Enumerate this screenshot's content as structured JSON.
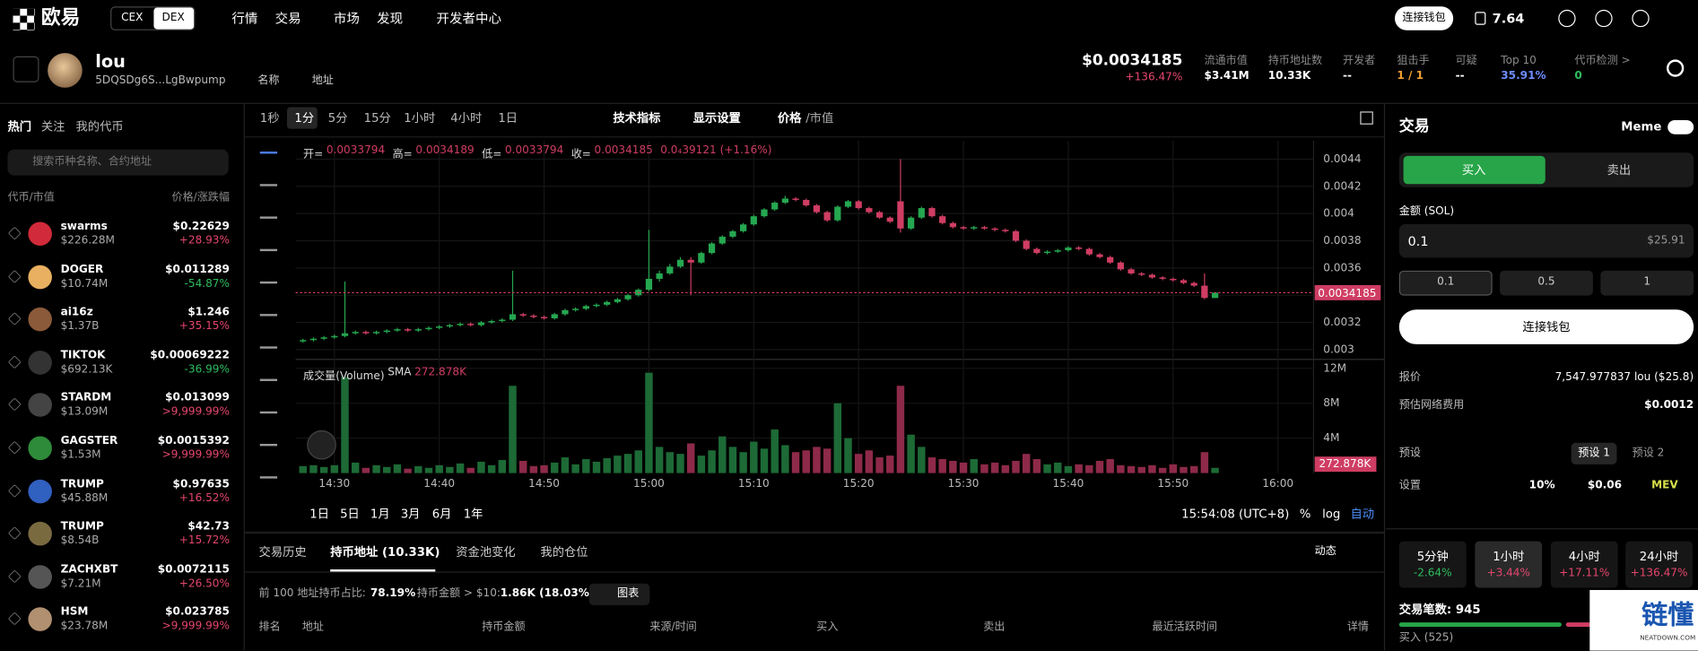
{
  "header": {
    "logo": "欧易",
    "cex": "CEX",
    "dex": "DEX",
    "nav": [
      "行情",
      "交易",
      "市场",
      "发现",
      "开发者中心"
    ],
    "connect": "连接钱包",
    "balance": "7.64"
  },
  "token": {
    "name": "lou",
    "address": "5DQSDg6S...LgBwpump",
    "links": [
      "名称",
      "地址"
    ],
    "price": "$0.0034185",
    "change": "+136.47%",
    "stats": [
      {
        "label": "流通市值",
        "value": "$3.41M"
      },
      {
        "label": "持币地址数",
        "value": "10.33K"
      },
      {
        "label": "开发者",
        "value": "--"
      },
      {
        "label": "狙击手",
        "value": "1 / 1"
      },
      {
        "label": "可疑",
        "value": "--"
      },
      {
        "label": "Top 10",
        "value": "35.91%"
      },
      {
        "label": "代币检测 >",
        "value": "0"
      }
    ]
  },
  "sidebar": {
    "tabs": [
      "热门",
      "关注",
      "我的代币"
    ],
    "search": "搜索币种名称、合约地址",
    "col_left": "代币/市值",
    "col_right": "价格/涨跌幅",
    "tokens": [
      {
        "name": "swarms",
        "mcap": "$226.28M",
        "price": "$0.22629",
        "change": "+28.93%"
      },
      {
        "name": "DOGER",
        "mcap": "$10.74M",
        "price": "$0.011289",
        "change": "-54.87%"
      },
      {
        "name": "ai16z",
        "mcap": "$1.37B",
        "price": "$1.246",
        "change": "+35.15%"
      },
      {
        "name": "TIKTOK",
        "mcap": "$692.13K",
        "price": "$0.00069222",
        "change": "-36.99%"
      },
      {
        "name": "STARDM",
        "mcap": "$13.09M",
        "price": "$0.013099",
        "change": ">9,999.99%"
      },
      {
        "name": "GAGSTER",
        "mcap": "$1.53M",
        "price": "$0.0015392",
        "change": ">9,999.99%"
      },
      {
        "name": "TRUMP",
        "mcap": "$45.88M",
        "price": "$0.97635",
        "change": "+16.52%"
      },
      {
        "name": "TRUMP",
        "mcap": "$8.54B",
        "price": "$42.73",
        "change": "+15.72%"
      },
      {
        "name": "ZACHXBT",
        "mcap": "$7.21M",
        "price": "$0.0072115",
        "change": "+26.50%"
      },
      {
        "name": "HSM",
        "mcap": "$23.78M",
        "price": "$0.023785",
        "change": ">9,999.99%"
      }
    ]
  },
  "toolbar": {
    "intervals": [
      "1秒",
      "1分",
      "5分",
      "15分",
      "1小时",
      "4小时",
      "1日"
    ],
    "indicators": "技术指标",
    "display": "显示设置",
    "price": "价格",
    "mcap": "/市值"
  },
  "chart_data": {
    "type": "candlestick",
    "ohlc_labels": [
      "开=",
      "高=",
      "低=",
      "收="
    ],
    "change": "0.0₄39121 (+1.16%)",
    "volume_title": "成交量(Volume)",
    "sma": "SMA",
    "volume_sma": {
      "value": 272878,
      "label": "272.878K"
    },
    "up_color": "#25a750",
    "down_color": "#cf3d63",
    "volume_up_color": "#1d6a36",
    "volume_down_color": "#8e2a49",
    "xlim": [
      -0.7,
      96.4
    ],
    "xticks": [
      {
        "value": 3,
        "label": "14:30"
      },
      {
        "value": 13,
        "label": "14:40"
      },
      {
        "value": 23,
        "label": "14:50"
      },
      {
        "value": 33,
        "label": "15:00"
      },
      {
        "value": 43,
        "label": "15:10"
      },
      {
        "value": 53,
        "label": "15:20"
      },
      {
        "value": 63,
        "label": "15:30"
      },
      {
        "value": 73,
        "label": "15:40"
      },
      {
        "value": 83,
        "label": "15:50"
      },
      {
        "value": 93,
        "label": "16:00"
      }
    ],
    "ylim": [
      0.002944,
      0.004535
    ],
    "yticks": [
      0.003,
      0.0032,
      0.0034,
      0.0036,
      0.0038,
      0.004,
      0.0042,
      0.0044
    ],
    "y2lim": [
      0,
      12900000
    ],
    "y2ticks": [
      {
        "value": 4000000,
        "label": "4M"
      },
      {
        "value": 8000000,
        "label": "8M"
      },
      {
        "value": 12000000,
        "label": "12M"
      }
    ],
    "open": [
      0.00306,
      0.00307,
      0.00308,
      0.00309,
      0.0031,
      0.00312,
      0.00313,
      0.00312,
      0.00313,
      0.00314,
      0.00315,
      0.00314,
      0.00315,
      0.00316,
      0.00317,
      0.00318,
      0.00319,
      0.00318,
      0.0032,
      0.00321,
      0.00322,
      0.00326,
      0.00325,
      0.00324,
      0.00323,
      0.00326,
      0.00329,
      0.0033,
      0.00332,
      0.00333,
      0.00335,
      0.00337,
      0.0034,
      0.00344,
      0.00352,
      0.00356,
      0.00361,
      0.00366,
      0.00364,
      0.00371,
      0.00378,
      0.00383,
      0.00387,
      0.00392,
      0.00398,
      0.00403,
      0.00408,
      0.00411,
      0.0041,
      0.00406,
      0.00401,
      0.00395,
      0.00405,
      0.00409,
      0.00404,
      0.00401,
      0.00397,
      0.00409,
      0.00389,
      0.00397,
      0.00404,
      0.00398,
      0.00393,
      0.0039,
      0.00389,
      0.0039,
      0.00389,
      0.00388,
      0.00387,
      0.0038,
      0.00374,
      0.00371,
      0.00372,
      0.00373,
      0.00375,
      0.00374,
      0.0037,
      0.00368,
      0.00364,
      0.00359,
      0.00356,
      0.00355,
      0.00353,
      0.00352,
      0.00351,
      0.00349,
      0.00347,
      0.0033794
    ],
    "high": [
      0.00308,
      0.00309,
      0.0031,
      0.00311,
      0.0035,
      0.00314,
      0.00314,
      0.00314,
      0.00315,
      0.00316,
      0.00316,
      0.00316,
      0.00317,
      0.00318,
      0.00319,
      0.0032,
      0.0032,
      0.00321,
      0.00322,
      0.00323,
      0.00358,
      0.00327,
      0.00326,
      0.00325,
      0.00327,
      0.0033,
      0.00331,
      0.00333,
      0.00334,
      0.00336,
      0.00338,
      0.00341,
      0.00345,
      0.00388,
      0.00358,
      0.00363,
      0.00368,
      0.00368,
      0.00372,
      0.00379,
      0.00384,
      0.00388,
      0.00393,
      0.00399,
      0.00404,
      0.00409,
      0.00413,
      0.00412,
      0.00411,
      0.00407,
      0.00402,
      0.00406,
      0.0041,
      0.0041,
      0.00405,
      0.00402,
      0.00398,
      0.0044,
      0.00398,
      0.00405,
      0.00405,
      0.00399,
      0.00394,
      0.00391,
      0.00391,
      0.00391,
      0.0039,
      0.00389,
      0.00388,
      0.00381,
      0.00375,
      0.00373,
      0.00374,
      0.00376,
      0.00376,
      0.00375,
      0.00371,
      0.00369,
      0.00365,
      0.0036,
      0.00357,
      0.00356,
      0.00354,
      0.00353,
      0.00352,
      0.0035,
      0.00356,
      0.0034189
    ],
    "low": [
      0.00305,
      0.00306,
      0.00307,
      0.00308,
      0.00309,
      0.00311,
      0.00311,
      0.00311,
      0.00312,
      0.00313,
      0.00313,
      0.00313,
      0.00314,
      0.00315,
      0.00316,
      0.00317,
      0.00317,
      0.00317,
      0.00319,
      0.0032,
      0.00321,
      0.00324,
      0.00323,
      0.00322,
      0.00322,
      0.00325,
      0.00328,
      0.00329,
      0.00331,
      0.00332,
      0.00334,
      0.00336,
      0.00339,
      0.00343,
      0.0035,
      0.00355,
      0.0036,
      0.0034,
      0.00363,
      0.0037,
      0.00377,
      0.00382,
      0.00386,
      0.00391,
      0.00397,
      0.00402,
      0.00407,
      0.00409,
      0.00405,
      0.004,
      0.00394,
      0.00394,
      0.00404,
      0.00403,
      0.004,
      0.00396,
      0.00393,
      0.00386,
      0.00388,
      0.00396,
      0.00397,
      0.00392,
      0.00389,
      0.00388,
      0.00388,
      0.00388,
      0.00387,
      0.00386,
      0.00379,
      0.00373,
      0.0037,
      0.0037,
      0.00371,
      0.00372,
      0.00373,
      0.00369,
      0.00367,
      0.00363,
      0.00358,
      0.00355,
      0.00354,
      0.00352,
      0.00351,
      0.0035,
      0.00348,
      0.00346,
      0.00337,
      0.0033794
    ],
    "close": [
      0.00307,
      0.00308,
      0.00309,
      0.0031,
      0.00312,
      0.00313,
      0.00312,
      0.00313,
      0.00314,
      0.00315,
      0.00314,
      0.00315,
      0.00316,
      0.00317,
      0.00318,
      0.00319,
      0.00318,
      0.0032,
      0.00321,
      0.00322,
      0.00326,
      0.00325,
      0.00324,
      0.00323,
      0.00326,
      0.00329,
      0.0033,
      0.00332,
      0.00333,
      0.00335,
      0.00337,
      0.0034,
      0.00344,
      0.00352,
      0.00356,
      0.00361,
      0.00366,
      0.00364,
      0.00371,
      0.00378,
      0.00383,
      0.00387,
      0.00392,
      0.00398,
      0.00403,
      0.00408,
      0.00411,
      0.0041,
      0.00406,
      0.00401,
      0.00395,
      0.00405,
      0.00409,
      0.00404,
      0.00401,
      0.00397,
      0.00394,
      0.00389,
      0.00397,
      0.00404,
      0.00398,
      0.00393,
      0.0039,
      0.00389,
      0.0039,
      0.00389,
      0.00388,
      0.00387,
      0.0038,
      0.00374,
      0.00371,
      0.00372,
      0.00373,
      0.00375,
      0.00374,
      0.0037,
      0.00368,
      0.00364,
      0.00359,
      0.00356,
      0.00355,
      0.00353,
      0.00352,
      0.00351,
      0.00349,
      0.00347,
      0.00338,
      0.0034185
    ],
    "volume": [
      800000,
      900000,
      700000,
      900000,
      11000000,
      1200000,
      600000,
      900000,
      700000,
      1000000,
      500000,
      800000,
      600000,
      900000,
      700000,
      1100000,
      600000,
      1300000,
      900000,
      1500000,
      10000000,
      1400000,
      800000,
      900000,
      1200000,
      1800000,
      1000000,
      1600000,
      1300000,
      1700000,
      2000000,
      2200000,
      2600000,
      11500000,
      3000000,
      2400000,
      2200000,
      3400000,
      2000000,
      2600000,
      4200000,
      3000000,
      2400000,
      3600000,
      2800000,
      5000000,
      3200000,
      2400000,
      2600000,
      3000000,
      2800000,
      8000000,
      4000000,
      2200000,
      2600000,
      1800000,
      2000000,
      10000000,
      4400000,
      3000000,
      1800000,
      1600000,
      1400000,
      1200000,
      1600000,
      1000000,
      1200000,
      900000,
      1400000,
      2200000,
      1600000,
      1000000,
      1200000,
      800000,
      1000000,
      900000,
      1400000,
      1600000,
      900000,
      800000,
      700000,
      900000,
      600000,
      1000000,
      700000,
      800000,
      2400000,
      600000
    ],
    "ranges": [
      "1日",
      "5日",
      "1月",
      "3月",
      "6月",
      "1年"
    ],
    "time": "15:54:08 (UTC+8)",
    "percent": "%",
    "log": "log",
    "auto": "自动"
  },
  "bottom": {
    "tabs": [
      "交易历史",
      "持币地址 (10.33K)",
      "资金池变化",
      "我的仓位"
    ],
    "activity": "动态",
    "top100_label": "前 100 地址持币占比:",
    "top100_value": "78.19%",
    "holders_label": "持币金额 > $10:",
    "holders_value": "1.86K (18.03%)",
    "chart_button": "图表",
    "columns": [
      "排名",
      "地址",
      "持币金额",
      "来源/时间",
      "买入",
      "卖出",
      "最近活跃时间",
      "详情"
    ]
  },
  "trade": {
    "title": "交易",
    "meme": "Meme",
    "buy": "买入",
    "sell": "卖出",
    "amount_label": "金额 (SOL)",
    "amount": "0.1",
    "amount_usd": "$25.91",
    "presets": [
      "0.1",
      "0.5",
      "1"
    ],
    "connect": "连接钱包",
    "quote_label": "报价",
    "quote": "7,547.977837 lou ($25.8)",
    "fee_label": "预估网络费用",
    "fee": "$0.0012",
    "preset_label": "预设",
    "preset_tabs": [
      "预设 1",
      "预设 2"
    ],
    "settings_label": "设置",
    "settings": [
      "10%",
      "$0.06",
      "MEV"
    ],
    "periods": [
      {
        "label": "5分钟",
        "change": "-2.64%"
      },
      {
        "label": "1小时",
        "change": "+3.44%"
      },
      {
        "label": "4小时",
        "change": "+17.11%"
      },
      {
        "label": "24小时",
        "change": "+136.47%"
      }
    ],
    "tx_count": "交易笔数: 945",
    "buys": "买入 (525)"
  },
  "watermark": {
    "title": "链懂",
    "url": "NEATDOWN.COM"
  }
}
